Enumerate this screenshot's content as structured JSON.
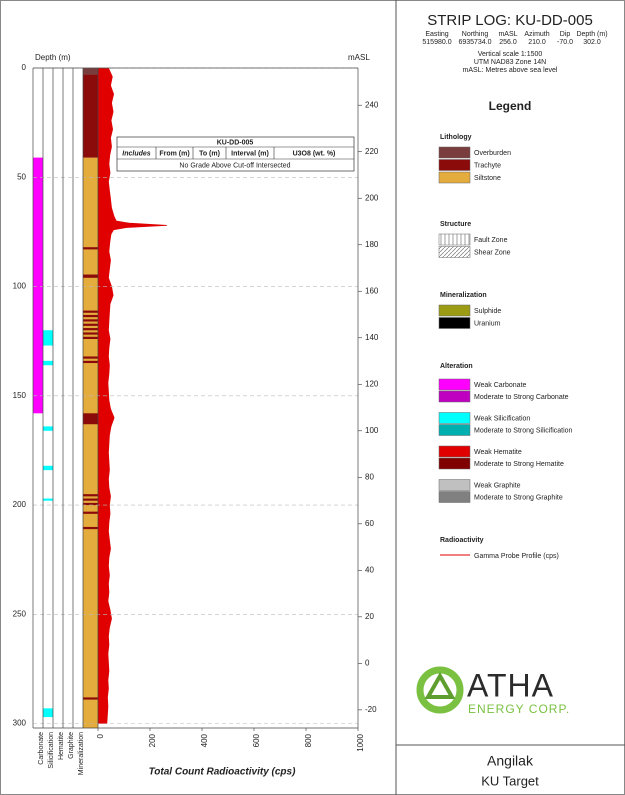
{
  "chart_data": {
    "type": "strip-log",
    "title": "STRIP LOG: KU-DD-005",
    "collar": {
      "labels": [
        "Easting",
        "Northing",
        "mASL",
        "Azimuth",
        "Dip",
        "Depth (m)"
      ],
      "values": [
        "515980.0",
        "6935734.0",
        "256.0",
        "210.0",
        "-70.0",
        "302.0"
      ]
    },
    "notes": [
      "Vertical scale 1:1500",
      "UTM NAD83 Zone 14N",
      "mASL: Metres above sea level"
    ],
    "ylabel": "Depth (m)",
    "y2label": "mASL",
    "xlabel": "Total Count Radioactivity (cps)",
    "ylim": [
      0,
      302
    ],
    "yticks": [
      0,
      50,
      100,
      150,
      200,
      250,
      300
    ],
    "y2lim": [
      256,
      -27.8
    ],
    "y2ticks": [
      240,
      220,
      200,
      180,
      160,
      140,
      120,
      100,
      80,
      60,
      40,
      20,
      0,
      -20
    ],
    "xlim": [
      0,
      1000
    ],
    "xticks": [
      0,
      200,
      400,
      600,
      800,
      1000
    ],
    "grid": true,
    "tracks": [
      "Carbonate",
      "Silicification",
      "Hematite",
      "Graphite",
      "Mineralization"
    ],
    "legend_title": "Legend",
    "groups": [
      {
        "title": "Lithology",
        "items": [
          {
            "name": "Overburden",
            "color": "#7a3d3d",
            "intervals": [
              [
                0,
                3
              ]
            ]
          },
          {
            "name": "Trachyte",
            "color": "#8b0a0a",
            "intervals": [
              [
                3,
                41
              ],
              [
                82,
                83
              ],
              [
                94.5,
                96
              ],
              [
                111,
                112
              ],
              [
                113,
                114
              ],
              [
                115,
                116
              ],
              [
                117,
                118
              ],
              [
                119,
                120
              ],
              [
                121,
                122
              ],
              [
                123,
                124
              ],
              [
                132,
                133
              ],
              [
                134,
                135
              ],
              [
                158,
                163
              ],
              [
                195,
                196
              ],
              [
                197,
                198
              ],
              [
                199,
                200
              ],
              [
                203,
                204
              ],
              [
                210,
                211
              ],
              [
                288,
                289
              ]
            ]
          },
          {
            "name": "Siltstone",
            "color": "#e3ac3c",
            "intervals": [
              [
                41,
                302
              ]
            ]
          }
        ]
      },
      {
        "title": "Structure",
        "items": [
          {
            "name": "Fault Zone",
            "pattern": "fault"
          },
          {
            "name": "Shear Zone",
            "pattern": "shear"
          }
        ]
      },
      {
        "title": "Mineralization",
        "items": [
          {
            "name": "Sulphide",
            "color": "#9c9c14"
          },
          {
            "name": "Uranium",
            "color": "#000000"
          }
        ]
      },
      {
        "title": "Alteration",
        "subgroups": [
          {
            "items": [
              {
                "name": "Weak Carbonate",
                "color": "#ff00ff",
                "intervals": [
                  [
                    41,
                    158
                  ]
                ]
              },
              {
                "name": "Moderate to Strong Carbonate",
                "color": "#c000c0"
              }
            ]
          },
          {
            "items": [
              {
                "name": "Weak Silicification",
                "color": "#00ffff",
                "intervals": [
                  [
                    120,
                    127
                  ],
                  [
                    134,
                    136
                  ],
                  [
                    164,
                    166
                  ],
                  [
                    182,
                    184
                  ],
                  [
                    197,
                    198
                  ],
                  [
                    293,
                    297
                  ]
                ]
              },
              {
                "name": "Moderate to Strong Silicification",
                "color": "#00b0b0"
              }
            ]
          },
          {
            "items": [
              {
                "name": "Weak Hematite",
                "color": "#e00000"
              },
              {
                "name": "Moderate to Strong Hematite",
                "color": "#800000"
              }
            ]
          },
          {
            "items": [
              {
                "name": "Weak Graphite",
                "color": "#c0c0c0"
              },
              {
                "name": "Moderate to Strong Graphite",
                "color": "#808080"
              }
            ]
          }
        ]
      },
      {
        "title": "Radioactivity",
        "items": [
          {
            "name": "Gamma Probe Profile (cps)",
            "color": "#e00000",
            "x": [
              0,
              4,
              8,
              12,
              16,
              20,
              24,
              28,
              32,
              36,
              40,
              44,
              48,
              52,
              56,
              60,
              64,
              68,
              70,
              71,
              72,
              73,
              74,
              76,
              80,
              84,
              88,
              92,
              96,
              100,
              104,
              108,
              112,
              116,
              120,
              124,
              128,
              132,
              136,
              140,
              144,
              148,
              152,
              156,
              160,
              164,
              168,
              172,
              176,
              180,
              184,
              188,
              192,
              196,
              200,
              204,
              208,
              212,
              216,
              220,
              224,
              228,
              232,
              236,
              240,
              244,
              248,
              252,
              256,
              260,
              264,
              268,
              272,
              276,
              280,
              284,
              288,
              292,
              296,
              300
            ],
            "values": [
              40,
              55,
              48,
              60,
              52,
              58,
              50,
              56,
              48,
              52,
              45,
              42,
              46,
              40,
              44,
              48,
              52,
              62,
              70,
              120,
              265,
              110,
              60,
              50,
              45,
              42,
              48,
              44,
              40,
              52,
              58,
              46,
              44,
              42,
              40,
              46,
              42,
              40,
              44,
              42,
              38,
              40,
              42,
              48,
              62,
              50,
              44,
              42,
              40,
              42,
              44,
              40,
              42,
              48,
              44,
              46,
              42,
              40,
              44,
              48,
              42,
              40,
              44,
              40,
              42,
              38,
              46,
              52,
              44,
              40,
              42,
              38,
              40,
              42,
              38,
              40,
              36,
              38,
              36,
              34
            ]
          }
        ]
      }
    ]
  },
  "table": {
    "title": "KU-DD-005",
    "columns": [
      "Includes",
      "From (m)",
      "To (m)",
      "Interval (m)",
      "U3O8 (wt. %)"
    ],
    "rows": [
      [
        "No Grade Above Cut-off Intersected"
      ]
    ]
  },
  "logo": {
    "name": "ATHA",
    "tagline": "ENERGY CORP."
  },
  "footer": [
    "Angilak",
    "KU Target"
  ]
}
